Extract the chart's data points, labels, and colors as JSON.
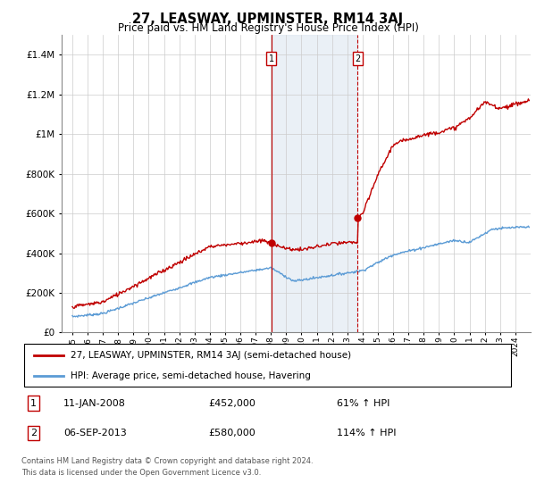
{
  "title": "27, LEASWAY, UPMINSTER, RM14 3AJ",
  "subtitle": "Price paid vs. HM Land Registry's House Price Index (HPI)",
  "hpi_label": "HPI: Average price, semi-detached house, Havering",
  "property_label": "27, LEASWAY, UPMINSTER, RM14 3AJ (semi-detached house)",
  "annotation1_date": "11-JAN-2008",
  "annotation1_price": 452000,
  "annotation1_pct": "61% ↑ HPI",
  "annotation2_date": "06-SEP-2013",
  "annotation2_price": 580000,
  "annotation2_pct": "114% ↑ HPI",
  "footnote1": "Contains HM Land Registry data © Crown copyright and database right 2024.",
  "footnote2": "This data is licensed under the Open Government Licence v3.0.",
  "ylim_max": 1500000,
  "background_color": "#ffffff",
  "hpi_color": "#5b9bd5",
  "property_color": "#c00000",
  "shade_color": "#dce6f1",
  "vline1_color": "#c00000",
  "vline2_color": "#c00000",
  "annotation_box_color": "#c00000",
  "sale1_x": 2008.04,
  "sale2_x": 2013.68,
  "xlim_left": 1994.3,
  "xlim_right": 2025.0
}
